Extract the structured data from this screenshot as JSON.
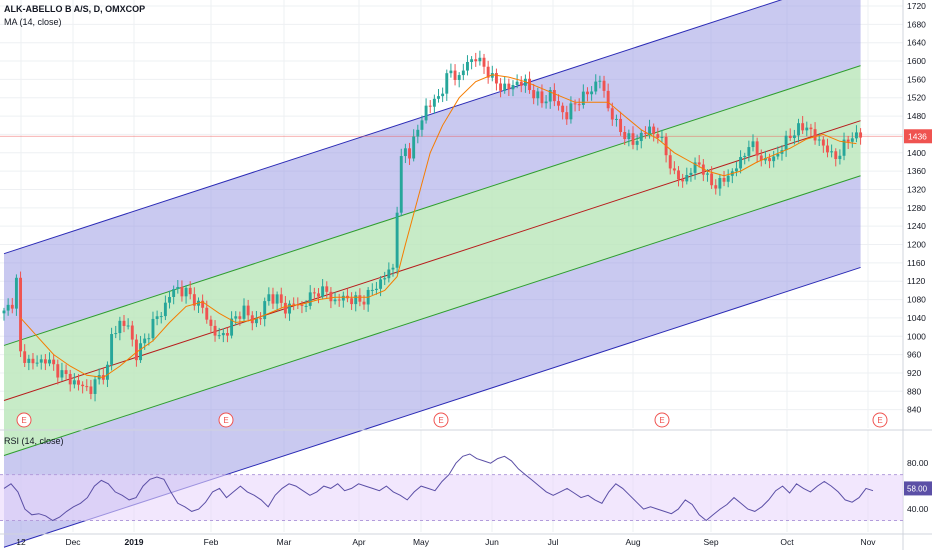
{
  "header": {
    "title": "ALK-ABELLO B A/S, D, OMXCOP",
    "ma_label": "MA (14, close)",
    "rsi_label": "RSI (14, close)"
  },
  "colors": {
    "up": "#26a69a",
    "down": "#ef5350",
    "ma": "#f57c00",
    "rsi": "#5b4fa6",
    "channel_outer": "#9d9de3",
    "channel_inner": "#b9e6b9",
    "channel_line_outer": "#2b2bb5",
    "channel_line_inner": "#2e9e2e",
    "channel_mid": "#b71c1c",
    "price_line": "#ef5350",
    "rsi_band": "#ead7fb"
  },
  "chart_data": [
    {
      "type": "candlestick",
      "title": "ALK-ABELLO B A/S, D, OMXCOP",
      "ylim": [
        800,
        1720
      ],
      "y_ticks": [
        840,
        880,
        920,
        960,
        1000,
        1040,
        1080,
        1120,
        1160,
        1200,
        1240,
        1280,
        1320,
        1360,
        1400,
        1440,
        1480,
        1520,
        1560,
        1600,
        1640,
        1680,
        1720
      ],
      "x_ticks": [
        "12",
        "Dec",
        "2019",
        "Feb",
        "Mar",
        "Apr",
        "May",
        "Jun",
        "Jul",
        "Aug",
        "Sep",
        "Oct",
        "Nov"
      ],
      "last_price": 1436,
      "earnings_markers": [
        "E",
        "E",
        "E",
        "E",
        "E"
      ],
      "price_path": [
        [
          0,
          1050
        ],
        [
          2,
          1075
        ],
        [
          3,
          1120
        ],
        [
          4,
          960
        ],
        [
          7,
          940
        ],
        [
          10,
          950
        ],
        [
          13,
          925
        ],
        [
          16,
          905
        ],
        [
          19,
          890
        ],
        [
          21,
          885
        ],
        [
          23,
          910
        ],
        [
          25,
          930
        ],
        [
          26,
          1000
        ],
        [
          28,
          1030
        ],
        [
          30,
          1020
        ],
        [
          32,
          960
        ],
        [
          34,
          990
        ],
        [
          36,
          1030
        ],
        [
          38,
          1050
        ],
        [
          40,
          1090
        ],
        [
          42,
          1105
        ],
        [
          44,
          1095
        ],
        [
          46,
          1080
        ],
        [
          48,
          1060
        ],
        [
          50,
          1020
        ],
        [
          52,
          995
        ],
        [
          54,
          1015
        ],
        [
          56,
          1040
        ],
        [
          58,
          1060
        ],
        [
          60,
          1030
        ],
        [
          62,
          1045
        ],
        [
          64,
          1090
        ],
        [
          66,
          1080
        ],
        [
          68,
          1060
        ],
        [
          70,
          1070
        ],
        [
          72,
          1065
        ],
        [
          74,
          1085
        ],
        [
          76,
          1100
        ],
        [
          78,
          1095
        ],
        [
          80,
          1075
        ],
        [
          82,
          1085
        ],
        [
          84,
          1080
        ],
        [
          86,
          1075
        ],
        [
          88,
          1090
        ],
        [
          90,
          1110
        ],
        [
          92,
          1130
        ],
        [
          94,
          1150
        ],
        [
          95,
          1280
        ],
        [
          96,
          1380
        ],
        [
          97,
          1410
        ],
        [
          98,
          1400
        ],
        [
          100,
          1450
        ],
        [
          102,
          1500
        ],
        [
          104,
          1510
        ],
        [
          106,
          1540
        ],
        [
          108,
          1580
        ],
        [
          110,
          1560
        ],
        [
          112,
          1600
        ],
        [
          114,
          1605
        ],
        [
          116,
          1590
        ],
        [
          118,
          1560
        ],
        [
          120,
          1545
        ],
        [
          122,
          1540
        ],
        [
          124,
          1555
        ],
        [
          126,
          1550
        ],
        [
          128,
          1530
        ],
        [
          130,
          1510
        ],
        [
          132,
          1530
        ],
        [
          134,
          1500
        ],
        [
          136,
          1480
        ],
        [
          138,
          1510
        ],
        [
          140,
          1520
        ],
        [
          142,
          1540
        ],
        [
          144,
          1560
        ],
        [
          146,
          1500
        ],
        [
          148,
          1460
        ],
        [
          150,
          1440
        ],
        [
          152,
          1420
        ],
        [
          154,
          1440
        ],
        [
          156,
          1450
        ],
        [
          158,
          1440
        ],
        [
          160,
          1400
        ],
        [
          162,
          1350
        ],
        [
          164,
          1340
        ],
        [
          166,
          1360
        ],
        [
          168,
          1380
        ],
        [
          170,
          1340
        ],
        [
          172,
          1330
        ],
        [
          174,
          1340
        ],
        [
          176,
          1360
        ],
        [
          178,
          1380
        ],
        [
          180,
          1420
        ],
        [
          182,
          1400
        ],
        [
          184,
          1380
        ],
        [
          186,
          1390
        ],
        [
          188,
          1410
        ],
        [
          190,
          1440
        ],
        [
          192,
          1450
        ],
        [
          194,
          1460
        ],
        [
          196,
          1430
        ],
        [
          198,
          1420
        ],
        [
          200,
          1390
        ],
        [
          202,
          1400
        ],
        [
          204,
          1430
        ],
        [
          206,
          1440
        ],
        [
          207,
          1436
        ]
      ],
      "ma_path": [
        [
          4,
          1040
        ],
        [
          8,
          1000
        ],
        [
          12,
          960
        ],
        [
          16,
          935
        ],
        [
          20,
          915
        ],
        [
          24,
          910
        ],
        [
          28,
          935
        ],
        [
          32,
          965
        ],
        [
          36,
          990
        ],
        [
          40,
          1030
        ],
        [
          44,
          1065
        ],
        [
          48,
          1075
        ],
        [
          52,
          1050
        ],
        [
          56,
          1030
        ],
        [
          60,
          1035
        ],
        [
          64,
          1050
        ],
        [
          68,
          1065
        ],
        [
          72,
          1070
        ],
        [
          76,
          1080
        ],
        [
          80,
          1085
        ],
        [
          84,
          1085
        ],
        [
          88,
          1085
        ],
        [
          92,
          1100
        ],
        [
          95,
          1130
        ],
        [
          97,
          1200
        ],
        [
          100,
          1300
        ],
        [
          103,
          1400
        ],
        [
          106,
          1460
        ],
        [
          110,
          1520
        ],
        [
          114,
          1555
        ],
        [
          118,
          1570
        ],
        [
          122,
          1565
        ],
        [
          126,
          1555
        ],
        [
          130,
          1540
        ],
        [
          134,
          1525
        ],
        [
          138,
          1510
        ],
        [
          142,
          1510
        ],
        [
          146,
          1510
        ],
        [
          150,
          1480
        ],
        [
          154,
          1450
        ],
        [
          158,
          1430
        ],
        [
          162,
          1400
        ],
        [
          166,
          1380
        ],
        [
          170,
          1360
        ],
        [
          174,
          1350
        ],
        [
          178,
          1360
        ],
        [
          182,
          1380
        ],
        [
          186,
          1395
        ],
        [
          190,
          1410
        ],
        [
          194,
          1430
        ],
        [
          198,
          1440
        ],
        [
          202,
          1425
        ],
        [
          206,
          1420
        ]
      ]
    },
    {
      "type": "line",
      "title": "RSI (14, close)",
      "ylim": [
        20,
        95
      ],
      "y_ticks": [
        40,
        60,
        80
      ],
      "y_tick_labels": [
        "40.00",
        "60.00",
        "80.00"
      ],
      "band": [
        30,
        70
      ],
      "last_value": 58,
      "values": [
        58,
        62,
        55,
        40,
        35,
        36,
        34,
        30,
        33,
        38,
        42,
        45,
        50,
        60,
        65,
        62,
        55,
        52,
        48,
        50,
        60,
        66,
        68,
        66,
        55,
        45,
        42,
        38,
        40,
        46,
        55,
        58,
        50,
        55,
        60,
        55,
        52,
        48,
        42,
        52,
        58,
        62,
        60,
        56,
        52,
        55,
        60,
        58,
        62,
        56,
        58,
        62,
        60,
        58,
        56,
        60,
        55,
        52,
        48,
        55,
        60,
        58,
        56,
        64,
        70,
        80,
        86,
        88,
        84,
        82,
        80,
        84,
        86,
        82,
        75,
        70,
        65,
        60,
        55,
        52,
        55,
        58,
        54,
        50,
        52,
        48,
        45,
        55,
        62,
        58,
        52,
        46,
        40,
        42,
        40,
        38,
        36,
        40,
        48,
        44,
        35,
        30,
        35,
        40,
        44,
        50,
        45,
        40,
        38,
        42,
        48,
        56,
        60,
        54,
        62,
        58,
        55,
        60,
        64,
        60,
        55,
        48,
        46,
        50,
        58,
        56
      ]
    }
  ]
}
